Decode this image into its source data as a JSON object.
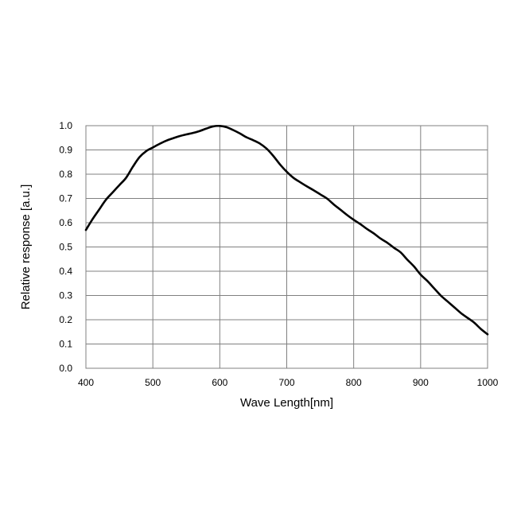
{
  "chart_data": {
    "type": "line",
    "title": "",
    "xlabel": "Wave Length[nm]",
    "ylabel": "Relative response [a.u.]",
    "xlim": [
      400,
      1000
    ],
    "ylim": [
      0.0,
      1.0
    ],
    "x_ticks": [
      400,
      500,
      600,
      700,
      800,
      900,
      1000
    ],
    "y_ticks": [
      0.0,
      0.1,
      0.2,
      0.3,
      0.4,
      0.5,
      0.6,
      0.7,
      0.8,
      0.9,
      1.0
    ],
    "x_tick_labels": [
      "400",
      "500",
      "600",
      "700",
      "800",
      "900",
      "1000"
    ],
    "y_tick_labels": [
      "0.0",
      "0.1",
      "0.2",
      "0.3",
      "0.4",
      "0.5",
      "0.6",
      "0.7",
      "0.8",
      "0.9",
      "1.0"
    ],
    "grid": true,
    "legend": "none",
    "line_color": "#000000",
    "grid_color": "#808080",
    "series": [
      {
        "x": [
          400,
          410,
          420,
          430,
          440,
          450,
          460,
          470,
          480,
          490,
          500,
          510,
          520,
          530,
          540,
          550,
          560,
          570,
          580,
          590,
          600,
          610,
          620,
          630,
          640,
          650,
          660,
          670,
          680,
          690,
          700,
          710,
          720,
          730,
          740,
          750,
          760,
          770,
          780,
          790,
          800,
          810,
          820,
          830,
          840,
          850,
          860,
          870,
          880,
          890,
          900,
          910,
          920,
          930,
          940,
          950,
          960,
          970,
          980,
          990,
          1000
        ],
        "values": [
          0.57,
          0.615,
          0.655,
          0.695,
          0.725,
          0.755,
          0.785,
          0.83,
          0.87,
          0.895,
          0.91,
          0.925,
          0.938,
          0.948,
          0.957,
          0.964,
          0.97,
          0.978,
          0.988,
          0.997,
          0.999,
          0.994,
          0.982,
          0.968,
          0.952,
          0.94,
          0.926,
          0.905,
          0.875,
          0.84,
          0.81,
          0.785,
          0.767,
          0.75,
          0.734,
          0.717,
          0.7,
          0.676,
          0.654,
          0.632,
          0.612,
          0.594,
          0.574,
          0.556,
          0.535,
          0.518,
          0.497,
          0.478,
          0.448,
          0.42,
          0.386,
          0.36,
          0.33,
          0.3,
          0.276,
          0.252,
          0.228,
          0.208,
          0.188,
          0.162,
          0.14
        ]
      }
    ]
  }
}
